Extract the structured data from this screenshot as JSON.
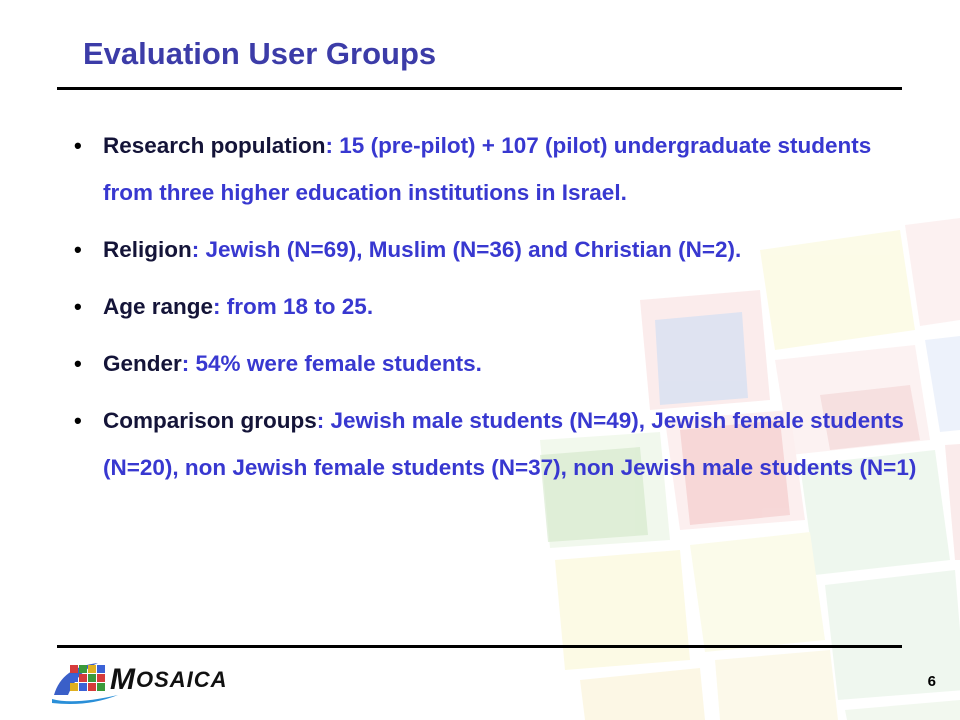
{
  "slide": {
    "title": "Evaluation User Groups",
    "page_number": "6",
    "logo_text": "MOSAICA"
  },
  "bullets": [
    {
      "label": "Research population",
      "separator": ": ",
      "text": "15 (pre-pilot) + 107 (pilot) undergraduate students from three higher education institutions in Israel."
    },
    {
      "label": "Religion",
      "separator": ": ",
      "text": "Jewish (N=69), Muslim (N=36) and Christian (N=2)."
    },
    {
      "label": "Age range",
      "separator": ": ",
      "text": "from 18 to 25."
    },
    {
      "label": "Gender",
      "separator": ": ",
      "text": "54% were female students."
    },
    {
      "label": "Comparison groups",
      "separator": ": ",
      "text": "Jewish male students (N=49), Jewish female students (N=20), non Jewish female students (N=37), non Jewish male students (N=1)"
    }
  ],
  "colors": {
    "title": "#3c3ca8",
    "bullet_text": "#3838d0",
    "bullet_label": "#141438",
    "rule": "#000000"
  },
  "icons": {
    "bullet": "bullet-dot-icon",
    "logo": "mosaica-logo-icon"
  }
}
